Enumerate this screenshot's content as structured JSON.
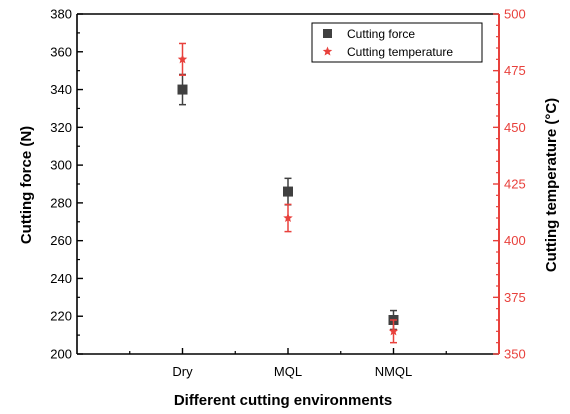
{
  "chart_data": {
    "type": "scatter",
    "categories": [
      "Dry",
      "MQL",
      "NMQL"
    ],
    "xlabel": "Different cutting environments",
    "ylabel": "Cutting force (N)",
    "y2label": "Cutting temperature (°C)",
    "ylim": [
      200,
      380
    ],
    "y2lim": [
      350,
      500
    ],
    "yticks": [
      200,
      220,
      240,
      260,
      280,
      300,
      320,
      340,
      360,
      380
    ],
    "y2ticks": [
      350,
      375,
      400,
      425,
      450,
      475,
      500
    ],
    "legend_position": "top-right",
    "series": [
      {
        "name": "Cutting force",
        "axis": "left",
        "marker": "square",
        "color": "#404040",
        "values": [
          340,
          286,
          218
        ],
        "errors": [
          8,
          7,
          5
        ]
      },
      {
        "name": "Cutting temperature",
        "axis": "right",
        "marker": "star",
        "color": "#e8413c",
        "values": [
          480,
          410,
          360
        ],
        "errors": [
          7,
          6,
          5
        ]
      }
    ],
    "right_axis_color": "#e8413c"
  }
}
